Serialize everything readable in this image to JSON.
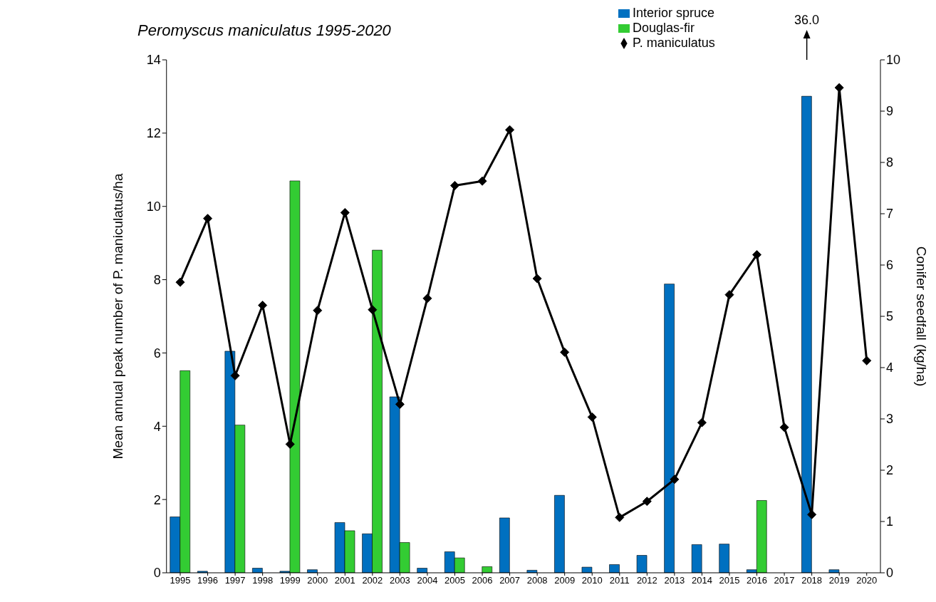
{
  "chart_data": {
    "type": "bar",
    "title": "Peromyscus maniculatus 1995-2020",
    "ylabel": "Mean annual peak number of P. maniculatus/ha",
    "y2label": "Conifer seedfall (kg/ha)",
    "categories": [
      "1995",
      "1996",
      "1997",
      "1998",
      "1999",
      "2000",
      "2001",
      "2002",
      "2003",
      "2004",
      "2005",
      "2006",
      "2007",
      "2008",
      "2009",
      "2010",
      "2011",
      "2012",
      "2013",
      "2014",
      "2015",
      "2016",
      "2017",
      "2018",
      "2019",
      "2020"
    ],
    "series": [
      {
        "name": "Interior spruce",
        "axis": "y2",
        "color": "#0070c0",
        "values": [
          1.09,
          0.03,
          4.32,
          0.09,
          0.03,
          0.06,
          0.98,
          0.76,
          3.43,
          0.09,
          0.41,
          0,
          1.07,
          0.05,
          1.51,
          0.11,
          0.16,
          0.34,
          5.63,
          0.55,
          0.56,
          0.06,
          0,
          9.29,
          0.06,
          0
        ]
      },
      {
        "name": "Douglas-fir",
        "axis": "y2",
        "color": "#33cc33",
        "values": [
          3.94,
          0,
          2.88,
          0,
          7.64,
          0,
          0.82,
          6.29,
          0.59,
          0,
          0.29,
          0.12,
          0,
          0,
          0,
          0,
          0,
          0,
          0,
          0,
          0,
          1.41,
          0,
          null,
          0,
          0
        ]
      },
      {
        "name": "P. maniculatus",
        "type": "line",
        "axis": "y",
        "color": "#000000",
        "marker": "diamond",
        "line_style": "solid",
        "values": [
          7.93,
          9.67,
          5.38,
          7.3,
          3.51,
          7.16,
          9.83,
          7.18,
          4.6,
          7.49,
          10.57,
          10.69,
          12.09,
          8.03,
          6.02,
          4.25,
          1.51,
          1.95,
          2.55,
          4.1,
          7.59,
          8.68,
          3.97,
          1.59,
          13.24,
          5.79
        ]
      }
    ],
    "ylim": [
      0,
      14
    ],
    "yticks": [
      0,
      2,
      4,
      6,
      8,
      10,
      12,
      14
    ],
    "y2lim": [
      0,
      10
    ],
    "y2ticks": [
      0,
      1,
      2,
      3,
      4,
      5,
      6,
      7,
      8,
      9,
      10
    ],
    "grid": false,
    "legend": "top",
    "annotations": [
      "36.0"
    ]
  }
}
